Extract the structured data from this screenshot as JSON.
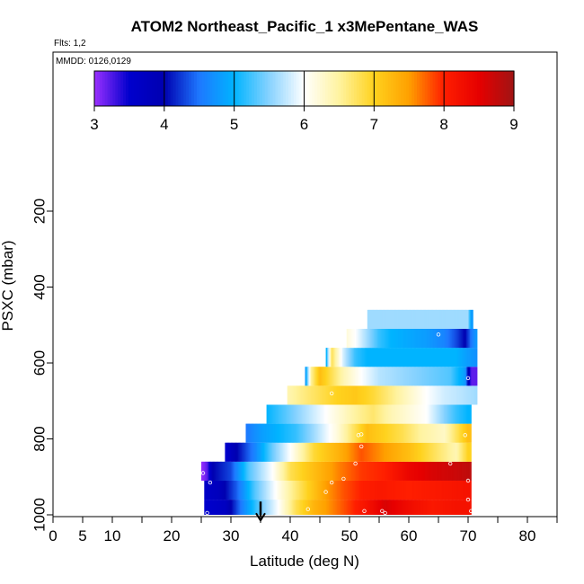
{
  "chart_data": {
    "type": "heatmap",
    "title": "ATOM2 Northeast_Pacific_1 x3MePentane_WAS",
    "flights_label": "Flts: 1,2",
    "dates_label": "MMDD: 0126,0129",
    "xlabel": "Latitude (deg N)",
    "ylabel": "PSXC (mbar)",
    "xlim": [
      0,
      85
    ],
    "ylim": [
      1010,
      0
    ],
    "x_ticks": [
      0,
      5,
      10,
      20,
      30,
      40,
      50,
      60,
      70,
      80
    ],
    "x_minor_ticks": [
      15,
      25,
      35,
      45,
      55,
      65,
      75,
      85
    ],
    "y_ticks": [
      200,
      400,
      600,
      800,
      1000
    ],
    "colorbar": {
      "min": 3,
      "max": 9,
      "ticks": [
        3,
        4,
        5,
        6,
        7,
        8,
        9
      ],
      "stops": [
        {
          "v": 3.0,
          "color": "#9b30ff"
        },
        {
          "v": 3.5,
          "color": "#0000cd"
        },
        {
          "v": 4.0,
          "color": "#0000b0"
        },
        {
          "v": 4.5,
          "color": "#1e78ff"
        },
        {
          "v": 5.0,
          "color": "#00b4ff"
        },
        {
          "v": 5.5,
          "color": "#87d2ff"
        },
        {
          "v": 6.0,
          "color": "#ffffff"
        },
        {
          "v": 6.5,
          "color": "#fff3a0"
        },
        {
          "v": 7.0,
          "color": "#ffd21e"
        },
        {
          "v": 7.5,
          "color": "#ffa000"
        },
        {
          "v": 8.0,
          "color": "#ff1e00"
        },
        {
          "v": 8.5,
          "color": "#e60000"
        },
        {
          "v": 9.0,
          "color": "#a01414"
        }
      ]
    },
    "bands": [
      {
        "p_top": 960,
        "p_bot": 1000,
        "lat_start": 25.5,
        "lat_end": 70.5,
        "values": [
          [
            25.5,
            3.5
          ],
          [
            29,
            3.7
          ],
          [
            32,
            4.6
          ],
          [
            35,
            5.4
          ],
          [
            38,
            6.0
          ],
          [
            41,
            6.8
          ],
          [
            44,
            7.3
          ],
          [
            47,
            7.6
          ],
          [
            50,
            7.9
          ],
          [
            53,
            8.2
          ],
          [
            56,
            8.6
          ],
          [
            60,
            8.3
          ],
          [
            64,
            8.1
          ],
          [
            68,
            8.2
          ],
          [
            70.5,
            8.2
          ]
        ]
      },
      {
        "p_top": 910,
        "p_bot": 960,
        "lat_start": 25.5,
        "lat_end": 70.5,
        "values": [
          [
            25.5,
            3.6
          ],
          [
            28,
            3.8
          ],
          [
            31,
            4.4
          ],
          [
            34,
            5.3
          ],
          [
            37,
            5.9
          ],
          [
            40,
            6.5
          ],
          [
            43,
            7.0
          ],
          [
            46,
            7.5
          ],
          [
            49,
            7.8
          ],
          [
            52,
            8.0
          ],
          [
            55,
            8.1
          ],
          [
            60,
            8.0
          ],
          [
            65,
            8.1
          ],
          [
            70.5,
            8.2
          ]
        ]
      },
      {
        "p_top": 860,
        "p_bot": 910,
        "lat_start": 25.0,
        "lat_end": 70.5,
        "values": [
          [
            25,
            3.0
          ],
          [
            26,
            3.2
          ],
          [
            27,
            4.0
          ],
          [
            30,
            4.3
          ],
          [
            33,
            5.3
          ],
          [
            37,
            6.0
          ],
          [
            40,
            6.8
          ],
          [
            44,
            7.2
          ],
          [
            48,
            7.6
          ],
          [
            52,
            7.9
          ],
          [
            56,
            8.0
          ],
          [
            60,
            8.4
          ],
          [
            64,
            8.6
          ],
          [
            68,
            8.7
          ],
          [
            70.5,
            8.8
          ]
        ]
      },
      {
        "p_top": 810,
        "p_bot": 860,
        "lat_start": 29.0,
        "lat_end": 70.5,
        "values": [
          [
            29,
            3.5
          ],
          [
            31,
            4.0
          ],
          [
            34,
            4.6
          ],
          [
            37,
            5.4
          ],
          [
            40,
            6.0
          ],
          [
            44,
            6.9
          ],
          [
            48,
            7.3
          ],
          [
            52,
            7.8
          ],
          [
            56,
            7.5
          ],
          [
            60,
            7.2
          ],
          [
            64,
            6.8
          ],
          [
            68,
            6.4
          ],
          [
            70,
            7.0
          ]
        ]
      },
      {
        "p_top": 760,
        "p_bot": 810,
        "lat_start": 32.5,
        "lat_end": 70.5,
        "values": [
          [
            32.5,
            4.5
          ],
          [
            35,
            4.8
          ],
          [
            38,
            5.0
          ],
          [
            41,
            5.2
          ],
          [
            44,
            5.6
          ],
          [
            48,
            6.2
          ],
          [
            51,
            6.8
          ],
          [
            53,
            7.2
          ],
          [
            56,
            7.0
          ],
          [
            59,
            6.8
          ],
          [
            62,
            6.5
          ],
          [
            66,
            6.3
          ],
          [
            70,
            7.2
          ]
        ]
      },
      {
        "p_top": 710,
        "p_bot": 760,
        "lat_start": 36.0,
        "lat_end": 70.5,
        "values": [
          [
            36,
            5.0
          ],
          [
            39,
            5.3
          ],
          [
            42,
            5.6
          ],
          [
            45,
            5.9
          ],
          [
            48,
            6.2
          ],
          [
            51,
            6.5
          ],
          [
            54,
            6.7
          ],
          [
            57,
            6.4
          ],
          [
            60,
            6.2
          ],
          [
            63,
            6.0
          ],
          [
            66,
            5.5
          ],
          [
            68,
            5.2
          ],
          [
            70,
            5.0
          ]
        ]
      },
      {
        "p_top": 660,
        "p_bot": 710,
        "lat_start": 39.5,
        "lat_end": 71.5,
        "values": [
          [
            39.5,
            6.4
          ],
          [
            42,
            6.6
          ],
          [
            45,
            6.8
          ],
          [
            48,
            7.0
          ],
          [
            51,
            7.1
          ],
          [
            54,
            6.9
          ],
          [
            57,
            6.6
          ],
          [
            60,
            6.3
          ],
          [
            63,
            6.0
          ],
          [
            66,
            5.8
          ],
          [
            69,
            5.7
          ],
          [
            71.5,
            5.6
          ]
        ]
      },
      {
        "p_top": 610,
        "p_bot": 660,
        "lat_start": 42.5,
        "lat_end": 71.5,
        "values": [
          [
            42.5,
            4.6
          ],
          [
            43.5,
            6.5
          ],
          [
            45,
            7.2
          ],
          [
            47,
            6.8
          ],
          [
            49,
            6.4
          ],
          [
            52,
            6.0
          ],
          [
            55,
            5.7
          ],
          [
            58,
            5.6
          ],
          [
            61,
            5.5
          ],
          [
            64,
            5.4
          ],
          [
            67,
            5.3
          ],
          [
            69.5,
            4.8
          ],
          [
            70.5,
            3.2
          ]
        ]
      },
      {
        "p_top": 560,
        "p_bot": 610,
        "lat_start": 46.0,
        "lat_end": 71.5,
        "values": [
          [
            46,
            4.8
          ],
          [
            47,
            6.8
          ],
          [
            49,
            5.8
          ],
          [
            51,
            5.2
          ],
          [
            53,
            5.0
          ],
          [
            56,
            5.0
          ],
          [
            59,
            5.0
          ],
          [
            62,
            5.0
          ],
          [
            65,
            5.0
          ],
          [
            68,
            5.0
          ],
          [
            70,
            4.8
          ],
          [
            71.5,
            4.7
          ]
        ]
      },
      {
        "p_top": 510,
        "p_bot": 560,
        "lat_start": 49.5,
        "lat_end": 71.5,
        "values": [
          [
            49.5,
            6.2
          ],
          [
            51,
            6.0
          ],
          [
            53,
            5.6
          ],
          [
            55,
            5.2
          ],
          [
            57,
            5.0
          ],
          [
            60,
            4.9
          ],
          [
            63,
            4.8
          ],
          [
            66,
            4.6
          ],
          [
            68,
            4.3
          ],
          [
            69.5,
            4.0
          ],
          [
            70.5,
            4.5
          ],
          [
            71.5,
            4.8
          ]
        ]
      },
      {
        "p_top": 460,
        "p_bot": 510,
        "lat_start": 53.0,
        "lat_end": 70.8,
        "values": [
          [
            53,
            5.6
          ],
          [
            58,
            5.6
          ],
          [
            63,
            5.6
          ],
          [
            68,
            5.6
          ],
          [
            70,
            5.6
          ],
          [
            70.5,
            4.8
          ]
        ]
      }
    ],
    "samples": [
      {
        "lat": 26.0,
        "p": 995
      },
      {
        "lat": 26.5,
        "p": 915
      },
      {
        "lat": 25.3,
        "p": 890
      },
      {
        "lat": 43.0,
        "p": 985
      },
      {
        "lat": 46.0,
        "p": 940
      },
      {
        "lat": 47.0,
        "p": 915
      },
      {
        "lat": 49.0,
        "p": 905
      },
      {
        "lat": 51.0,
        "p": 865
      },
      {
        "lat": 52.5,
        "p": 990
      },
      {
        "lat": 55.5,
        "p": 990
      },
      {
        "lat": 52.0,
        "p": 820
      },
      {
        "lat": 56.0,
        "p": 995
      },
      {
        "lat": 51.5,
        "p": 790
      },
      {
        "lat": 52.0,
        "p": 788
      },
      {
        "lat": 70.0,
        "p": 960
      },
      {
        "lat": 70.0,
        "p": 910
      },
      {
        "lat": 67.0,
        "p": 865
      },
      {
        "lat": 69.5,
        "p": 790
      },
      {
        "lat": 47.0,
        "p": 680
      },
      {
        "lat": 65.0,
        "p": 525
      },
      {
        "lat": 70.0,
        "p": 640
      },
      {
        "lat": 70.5,
        "p": 990
      }
    ],
    "marker": {
      "lat": 35,
      "p_start": 965,
      "p_end": 1010
    }
  }
}
